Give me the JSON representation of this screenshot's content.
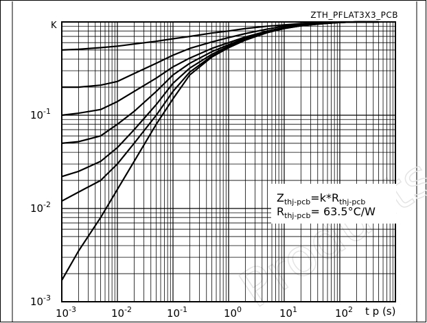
{
  "chart_data": {
    "type": "line",
    "title": "ZTH_PFLAT3X3_PCB",
    "ylabel": "K",
    "xlabel": "t p (s)",
    "xscale": "log",
    "yscale": "log",
    "xlim": [
      0.001,
      1000
    ],
    "ylim": [
      0.001,
      1
    ],
    "grid": true,
    "x_ticks": [
      {
        "mantissa": "10",
        "exp": "-3",
        "value": 0.001
      },
      {
        "mantissa": "10",
        "exp": "-2",
        "value": 0.01
      },
      {
        "mantissa": "10",
        "exp": "-1",
        "value": 0.1
      },
      {
        "mantissa": "10",
        "exp": "0",
        "value": 1
      },
      {
        "mantissa": "10",
        "exp": "1",
        "value": 10
      },
      {
        "mantissa": "10",
        "exp": "2",
        "value": 100
      }
    ],
    "y_ticks": [
      {
        "mantissa": "10",
        "exp": "-1",
        "value": 0.1
      },
      {
        "mantissa": "10",
        "exp": "-2",
        "value": 0.01
      },
      {
        "mantissa": "10",
        "exp": "-3",
        "value": 0.001
      }
    ],
    "annotation": {
      "line1": {
        "main": "Z",
        "sub": "thj-pcb",
        "mid": "=k*R",
        "sub2": "thj-pcb"
      },
      "line2": {
        "main": "R",
        "sub": "thj-pcb",
        "rest": "= 63.5°C/W"
      }
    },
    "series": [
      {
        "x": [
          0.001,
          0.002,
          0.005,
          0.01,
          0.02,
          0.05,
          0.1,
          0.2,
          0.5,
          1,
          2,
          5,
          10,
          20,
          50,
          100,
          200,
          500
        ],
        "y": [
          0.5,
          0.51,
          0.53,
          0.55,
          0.58,
          0.62,
          0.66,
          0.7,
          0.76,
          0.8,
          0.85,
          0.9,
          0.93,
          0.96,
          0.98,
          1.0,
          1.0,
          1.0
        ]
      },
      {
        "x": [
          0.001,
          0.002,
          0.005,
          0.01,
          0.02,
          0.05,
          0.1,
          0.2,
          0.5,
          1,
          2,
          5,
          10,
          20,
          50,
          100,
          200,
          500
        ],
        "y": [
          0.2,
          0.2,
          0.21,
          0.23,
          0.28,
          0.36,
          0.44,
          0.52,
          0.61,
          0.68,
          0.75,
          0.84,
          0.9,
          0.94,
          0.97,
          0.99,
          1.0,
          1.0
        ]
      },
      {
        "x": [
          0.001,
          0.002,
          0.005,
          0.01,
          0.02,
          0.05,
          0.1,
          0.2,
          0.5,
          1,
          2,
          5,
          10,
          20,
          50,
          100,
          200,
          500
        ],
        "y": [
          0.1,
          0.105,
          0.115,
          0.14,
          0.18,
          0.25,
          0.33,
          0.41,
          0.52,
          0.6,
          0.69,
          0.8,
          0.87,
          0.92,
          0.96,
          0.99,
          1.0,
          1.0
        ]
      },
      {
        "x": [
          0.001,
          0.002,
          0.005,
          0.01,
          0.02,
          0.05,
          0.1,
          0.2,
          0.5,
          1,
          2,
          5,
          10,
          20,
          50,
          100,
          200,
          500
        ],
        "y": [
          0.05,
          0.052,
          0.06,
          0.08,
          0.11,
          0.18,
          0.27,
          0.36,
          0.48,
          0.57,
          0.67,
          0.79,
          0.86,
          0.92,
          0.96,
          0.99,
          1.0,
          1.0
        ]
      },
      {
        "x": [
          0.001,
          0.002,
          0.005,
          0.01,
          0.02,
          0.05,
          0.1,
          0.2,
          0.5,
          1,
          2,
          5,
          10,
          20,
          50,
          100,
          200,
          500
        ],
        "y": [
          0.022,
          0.025,
          0.032,
          0.045,
          0.07,
          0.13,
          0.22,
          0.32,
          0.45,
          0.55,
          0.65,
          0.78,
          0.86,
          0.91,
          0.96,
          0.99,
          1.0,
          1.0
        ]
      },
      {
        "x": [
          0.001,
          0.002,
          0.005,
          0.01,
          0.02,
          0.05,
          0.1,
          0.2,
          0.5,
          1,
          2,
          5,
          10,
          20,
          50,
          100,
          200,
          500
        ],
        "y": [
          0.012,
          0.015,
          0.02,
          0.03,
          0.05,
          0.1,
          0.18,
          0.29,
          0.43,
          0.53,
          0.64,
          0.77,
          0.85,
          0.91,
          0.96,
          0.99,
          1.0,
          1.0
        ]
      },
      {
        "x": [
          0.001,
          0.002,
          0.005,
          0.01,
          0.02,
          0.05,
          0.1,
          0.2,
          0.5,
          1,
          2,
          5,
          10,
          20,
          50,
          100,
          200,
          500
        ],
        "y": [
          0.0017,
          0.0035,
          0.008,
          0.016,
          0.032,
          0.08,
          0.15,
          0.27,
          0.42,
          0.53,
          0.64,
          0.77,
          0.85,
          0.91,
          0.96,
          0.99,
          1.0,
          1.0
        ]
      }
    ],
    "watermark": "Products",
    "colors": {
      "line": "#000000",
      "grid": "#000000",
      "watermark": "#e8e8e8"
    }
  }
}
